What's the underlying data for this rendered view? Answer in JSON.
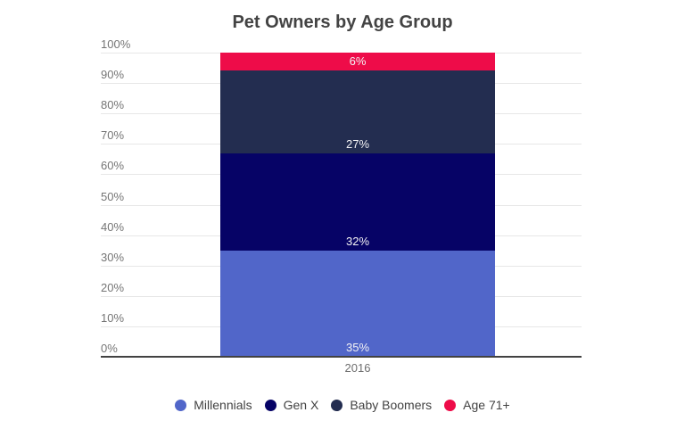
{
  "chart_data": {
    "type": "bar",
    "stacked": true,
    "title": "Pet Owners by Age Group",
    "categories": [
      "2016"
    ],
    "series": [
      {
        "name": "Millennials",
        "values": [
          35
        ],
        "label": "35%",
        "color": "#5166c9"
      },
      {
        "name": "Gen X",
        "values": [
          32
        ],
        "label": "32%",
        "color": "#060366"
      },
      {
        "name": "Baby Boomers",
        "values": [
          27
        ],
        "label": "27%",
        "color": "#232d50"
      },
      {
        "name": "Age 71+",
        "values": [
          6
        ],
        "label": "6%",
        "color": "#ee0c49"
      }
    ],
    "xlabel": "",
    "ylabel": "",
    "ylim": [
      0,
      100
    ],
    "y_ticks": [
      "0%",
      "10%",
      "20%",
      "30%",
      "40%",
      "50%",
      "60%",
      "70%",
      "80%",
      "90%",
      "100%"
    ],
    "grid": "horizontal",
    "legend_position": "bottom",
    "colors": {
      "title_text": "#434343",
      "axis_text": "#757575",
      "category_text": "#6e6e6e",
      "legend_text": "#424242",
      "gridline": "#e7e7e7",
      "axis_line": "#424242",
      "data_label_text": "#f3f2f4",
      "background": "#ffffff"
    }
  }
}
